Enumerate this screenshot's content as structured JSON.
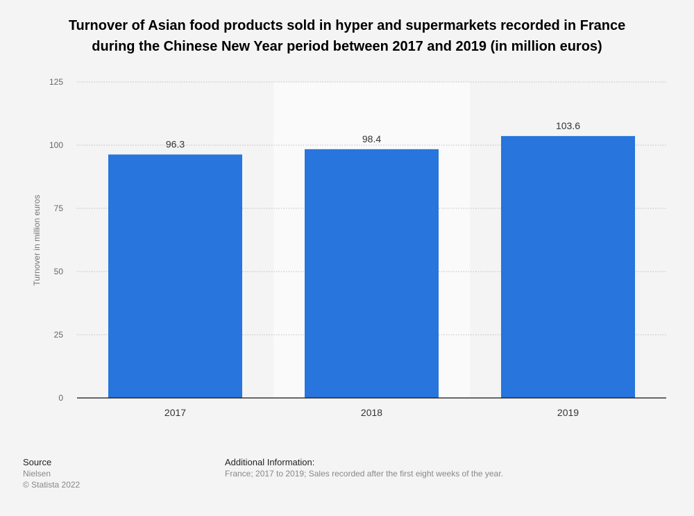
{
  "title_lines": [
    "Turnover of Asian food products sold in hyper and supermarkets recorded in France",
    "during the Chinese New Year period between 2017 and 2019 (in million euros)"
  ],
  "chart_data": {
    "type": "bar",
    "categories": [
      "2017",
      "2018",
      "2019"
    ],
    "values": [
      96.3,
      98.4,
      103.6
    ],
    "data_labels": [
      "96.3",
      "98.4",
      "103.6"
    ],
    "ylabel": "Turnover in million euros",
    "ylim": [
      0,
      125
    ],
    "yticks": [
      0,
      25,
      50,
      75,
      100,
      125
    ],
    "grid": true,
    "highlighted_category": "2018",
    "bar_color": "#2775dd",
    "highlight_background": "#fafafa"
  },
  "footer": {
    "source_heading": "Source",
    "source_lines": [
      "Nielsen",
      "© Statista 2022"
    ],
    "info_heading": "Additional Information:",
    "info_text": "France; 2017 to 2019; Sales recorded after the first eight weeks of the year."
  }
}
